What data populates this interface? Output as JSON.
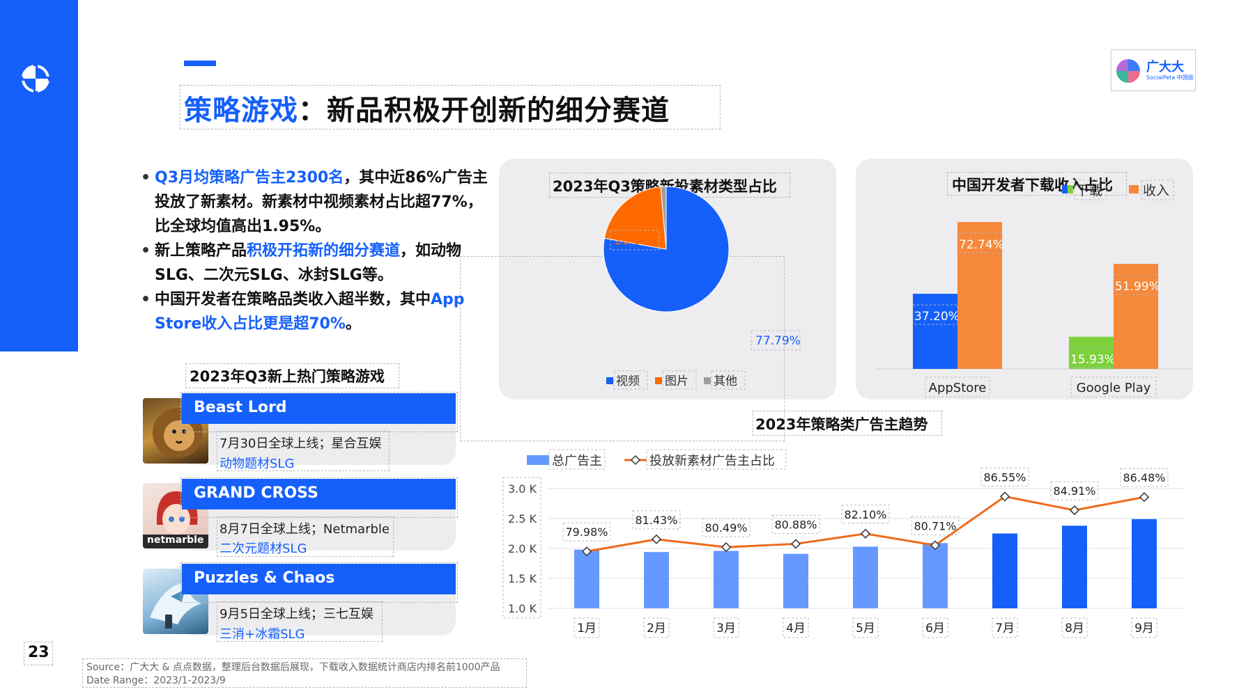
{
  "page": {
    "title_highlight": "策略游戏",
    "title_rest": "：新品积极开创新的细分赛道",
    "page_number": "23",
    "brand_name": "广大大",
    "brand_sub": "SocialPeta 中国版"
  },
  "bullets": [
    {
      "parts": [
        {
          "text": "Q3月均策略广告主2300名",
          "hl": true
        },
        {
          "text": "，其中近86%广告主投放了新素材。新素材中视频素材占比超77%，比全球均值高出1.95%。",
          "hl": false
        }
      ]
    },
    {
      "parts": [
        {
          "text": "新上策略产品",
          "hl": false
        },
        {
          "text": "积极开拓新的细分赛道",
          "hl": true
        },
        {
          "text": "，如动物SLG、二次元SLG、冰封SLG等。",
          "hl": false
        }
      ]
    },
    {
      "parts": [
        {
          "text": "中国开发者在策略品类收入超半数，其中",
          "hl": false
        },
        {
          "text": "App Store收入占比更是超70%",
          "hl": true
        },
        {
          "text": "。",
          "hl": false
        }
      ]
    }
  ],
  "games": {
    "heading": "2023年Q3新上热门策略游戏",
    "items": [
      {
        "name": "Beast Lord",
        "launch": "7月30日全球上线；星合互娱",
        "tag": "动物题材SLG",
        "icon": "lion-icon"
      },
      {
        "name": "GRAND CROSS",
        "launch": "8月7日全球上线；Netmarble",
        "tag": "二次元题材SLG",
        "icon": "anime-girl-icon",
        "icon_text": "netmarble"
      },
      {
        "name": "Puzzles & Chaos",
        "launch": "9月5日全球上线；三七互娱",
        "tag": "三消+冰霜SLG",
        "icon": "ice-dragon-icon"
      }
    ]
  },
  "source": {
    "line1": "Source：广大大 & 点点数据，整理后台数据后展现，下载收入数据统计商店内排名前1000产品",
    "line2": "Date Range：2023/1-2023/9"
  },
  "chart_data": [
    {
      "type": "pie",
      "title": "2023年Q3策略新投素材类型占比",
      "labels": [
        "视频",
        "图片",
        "其他"
      ],
      "values": [
        77.79,
        20.82,
        1.39
      ],
      "data_labels": [
        "77.79%",
        "20.82%",
        ""
      ],
      "colors": [
        "#1560fb",
        "#ff6a00",
        "#9e9e9e"
      ],
      "legend": "bottom"
    },
    {
      "type": "bar",
      "title": "中国开发者下载收入占比",
      "categories": [
        "AppStore",
        "Google Play"
      ],
      "series": [
        {
          "name": "下载",
          "values": [
            37.2,
            15.93
          ],
          "labels": [
            "37.20%",
            "15.93%"
          ],
          "colors": [
            "#1560fb",
            "#7dd13c"
          ]
        },
        {
          "name": "收入",
          "values": [
            72.74,
            51.99
          ],
          "labels": [
            "72.74%",
            "51.99%"
          ],
          "color": "#f5883a"
        }
      ],
      "ylim": [
        0,
        80
      ],
      "legend": "top-right"
    },
    {
      "type": "bar",
      "title": "2023年策略类广告主趋势",
      "categories": [
        "1月",
        "2月",
        "3月",
        "4月",
        "5月",
        "6月",
        "7月",
        "8月",
        "9月"
      ],
      "series": [
        {
          "name": "总广告主",
          "values": [
            1980,
            1940,
            1960,
            1910,
            2030,
            2090,
            2250,
            2380,
            2490
          ],
          "colors": [
            "#6699ff",
            "#6699ff",
            "#6699ff",
            "#6699ff",
            "#6699ff",
            "#6699ff",
            "#1560fb",
            "#1560fb",
            "#1560fb"
          ]
        },
        {
          "name": "投放新素材广告主占比",
          "type": "line",
          "values": [
            79.98,
            81.43,
            80.49,
            80.88,
            82.1,
            80.71,
            86.55,
            84.91,
            86.48
          ],
          "labels": [
            "79.98%",
            "81.43%",
            "80.49%",
            "80.88%",
            "82.10%",
            "80.71%",
            "86.55%",
            "84.91%",
            "86.48%"
          ],
          "color": "#f06a1a"
        }
      ],
      "y_ticks": [
        "3.0 K",
        "2.5 K",
        "2.0 K",
        "1.5 K",
        "1.0 K"
      ],
      "ylim": [
        1000,
        3000
      ],
      "legend": "top-left",
      "grid": true
    }
  ]
}
